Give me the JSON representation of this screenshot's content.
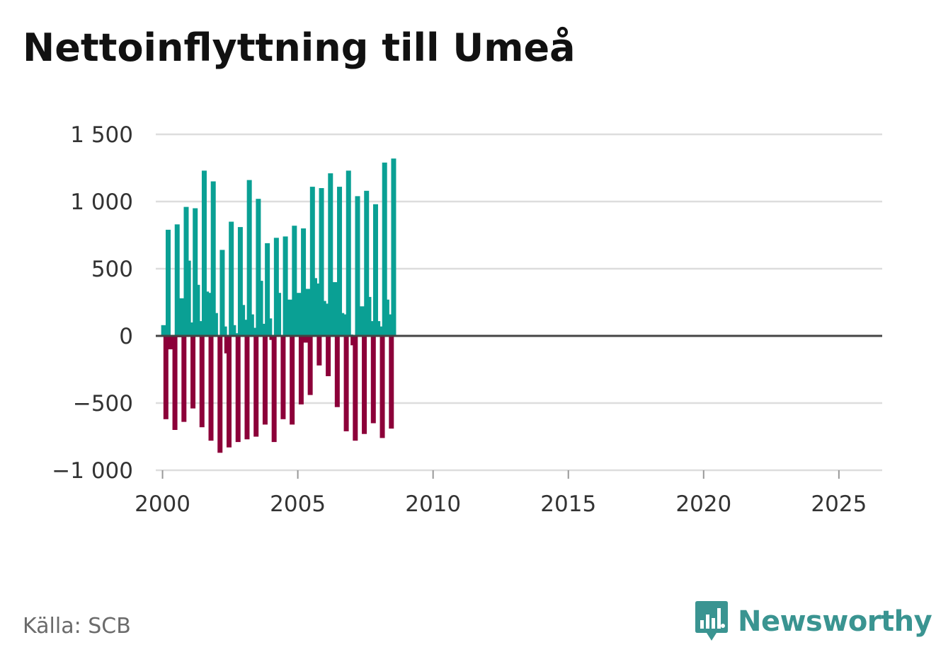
{
  "title": "Nettoinflyttning till Umeå",
  "source": "Källa: SCB",
  "brand": {
    "name": "Newsworthy",
    "color": "#3a9491",
    "icon": "bar-chart-speech-bubble-icon"
  },
  "colors": {
    "positive": "#0aa094",
    "negative": "#8c0039",
    "grid": "#dddddd",
    "zero_line": "#444444"
  },
  "chart_data": {
    "type": "bar",
    "title": "Nettoinflyttning till Umeå",
    "xlabel": "",
    "ylabel": "",
    "ylim": [
      -1000,
      1500
    ],
    "yticks": [
      -1000,
      -500,
      0,
      500,
      1000,
      1500
    ],
    "ytick_labels": [
      "−1 000",
      "−500",
      "0",
      "500",
      "1 000",
      "1 500"
    ],
    "xlim": [
      1999.75,
      2026.6
    ],
    "xticks": [
      2000,
      2005,
      2010,
      2015,
      2020,
      2025
    ],
    "xtick_labels": [
      "2000",
      "2005",
      "2010",
      "2015",
      "2020",
      "2025"
    ],
    "frequency": "monthly",
    "series_start": "2000-01",
    "values": [
      80,
      -620,
      790,
      -100,
      -10,
      -700,
      830,
      -10,
      280,
      -640,
      960,
      560,
      100,
      -540,
      950,
      380,
      110,
      -680,
      1230,
      330,
      320,
      -780,
      1150,
      170,
      0,
      -870,
      640,
      70,
      -130,
      -830,
      850,
      80,
      20,
      -790,
      810,
      230,
      120,
      -770,
      1160,
      160,
      60,
      -750,
      1020,
      410,
      90,
      -660,
      690,
      130,
      -30,
      -790,
      730,
      320,
      0,
      -620,
      740,
      250,
      270,
      -660,
      820,
      250,
      320,
      -510,
      800,
      -50,
      350,
      -440,
      1110,
      430,
      390,
      -220,
      1100,
      260,
      240,
      -300,
      1210,
      310,
      400,
      -530,
      1110,
      170,
      160,
      -710,
      1230,
      10,
      -70,
      -780,
      1040,
      30,
      220,
      -730,
      1080,
      290,
      110,
      -650,
      980,
      110,
      70,
      -760,
      1290,
      270,
      160,
      -690,
      1320
    ]
  }
}
